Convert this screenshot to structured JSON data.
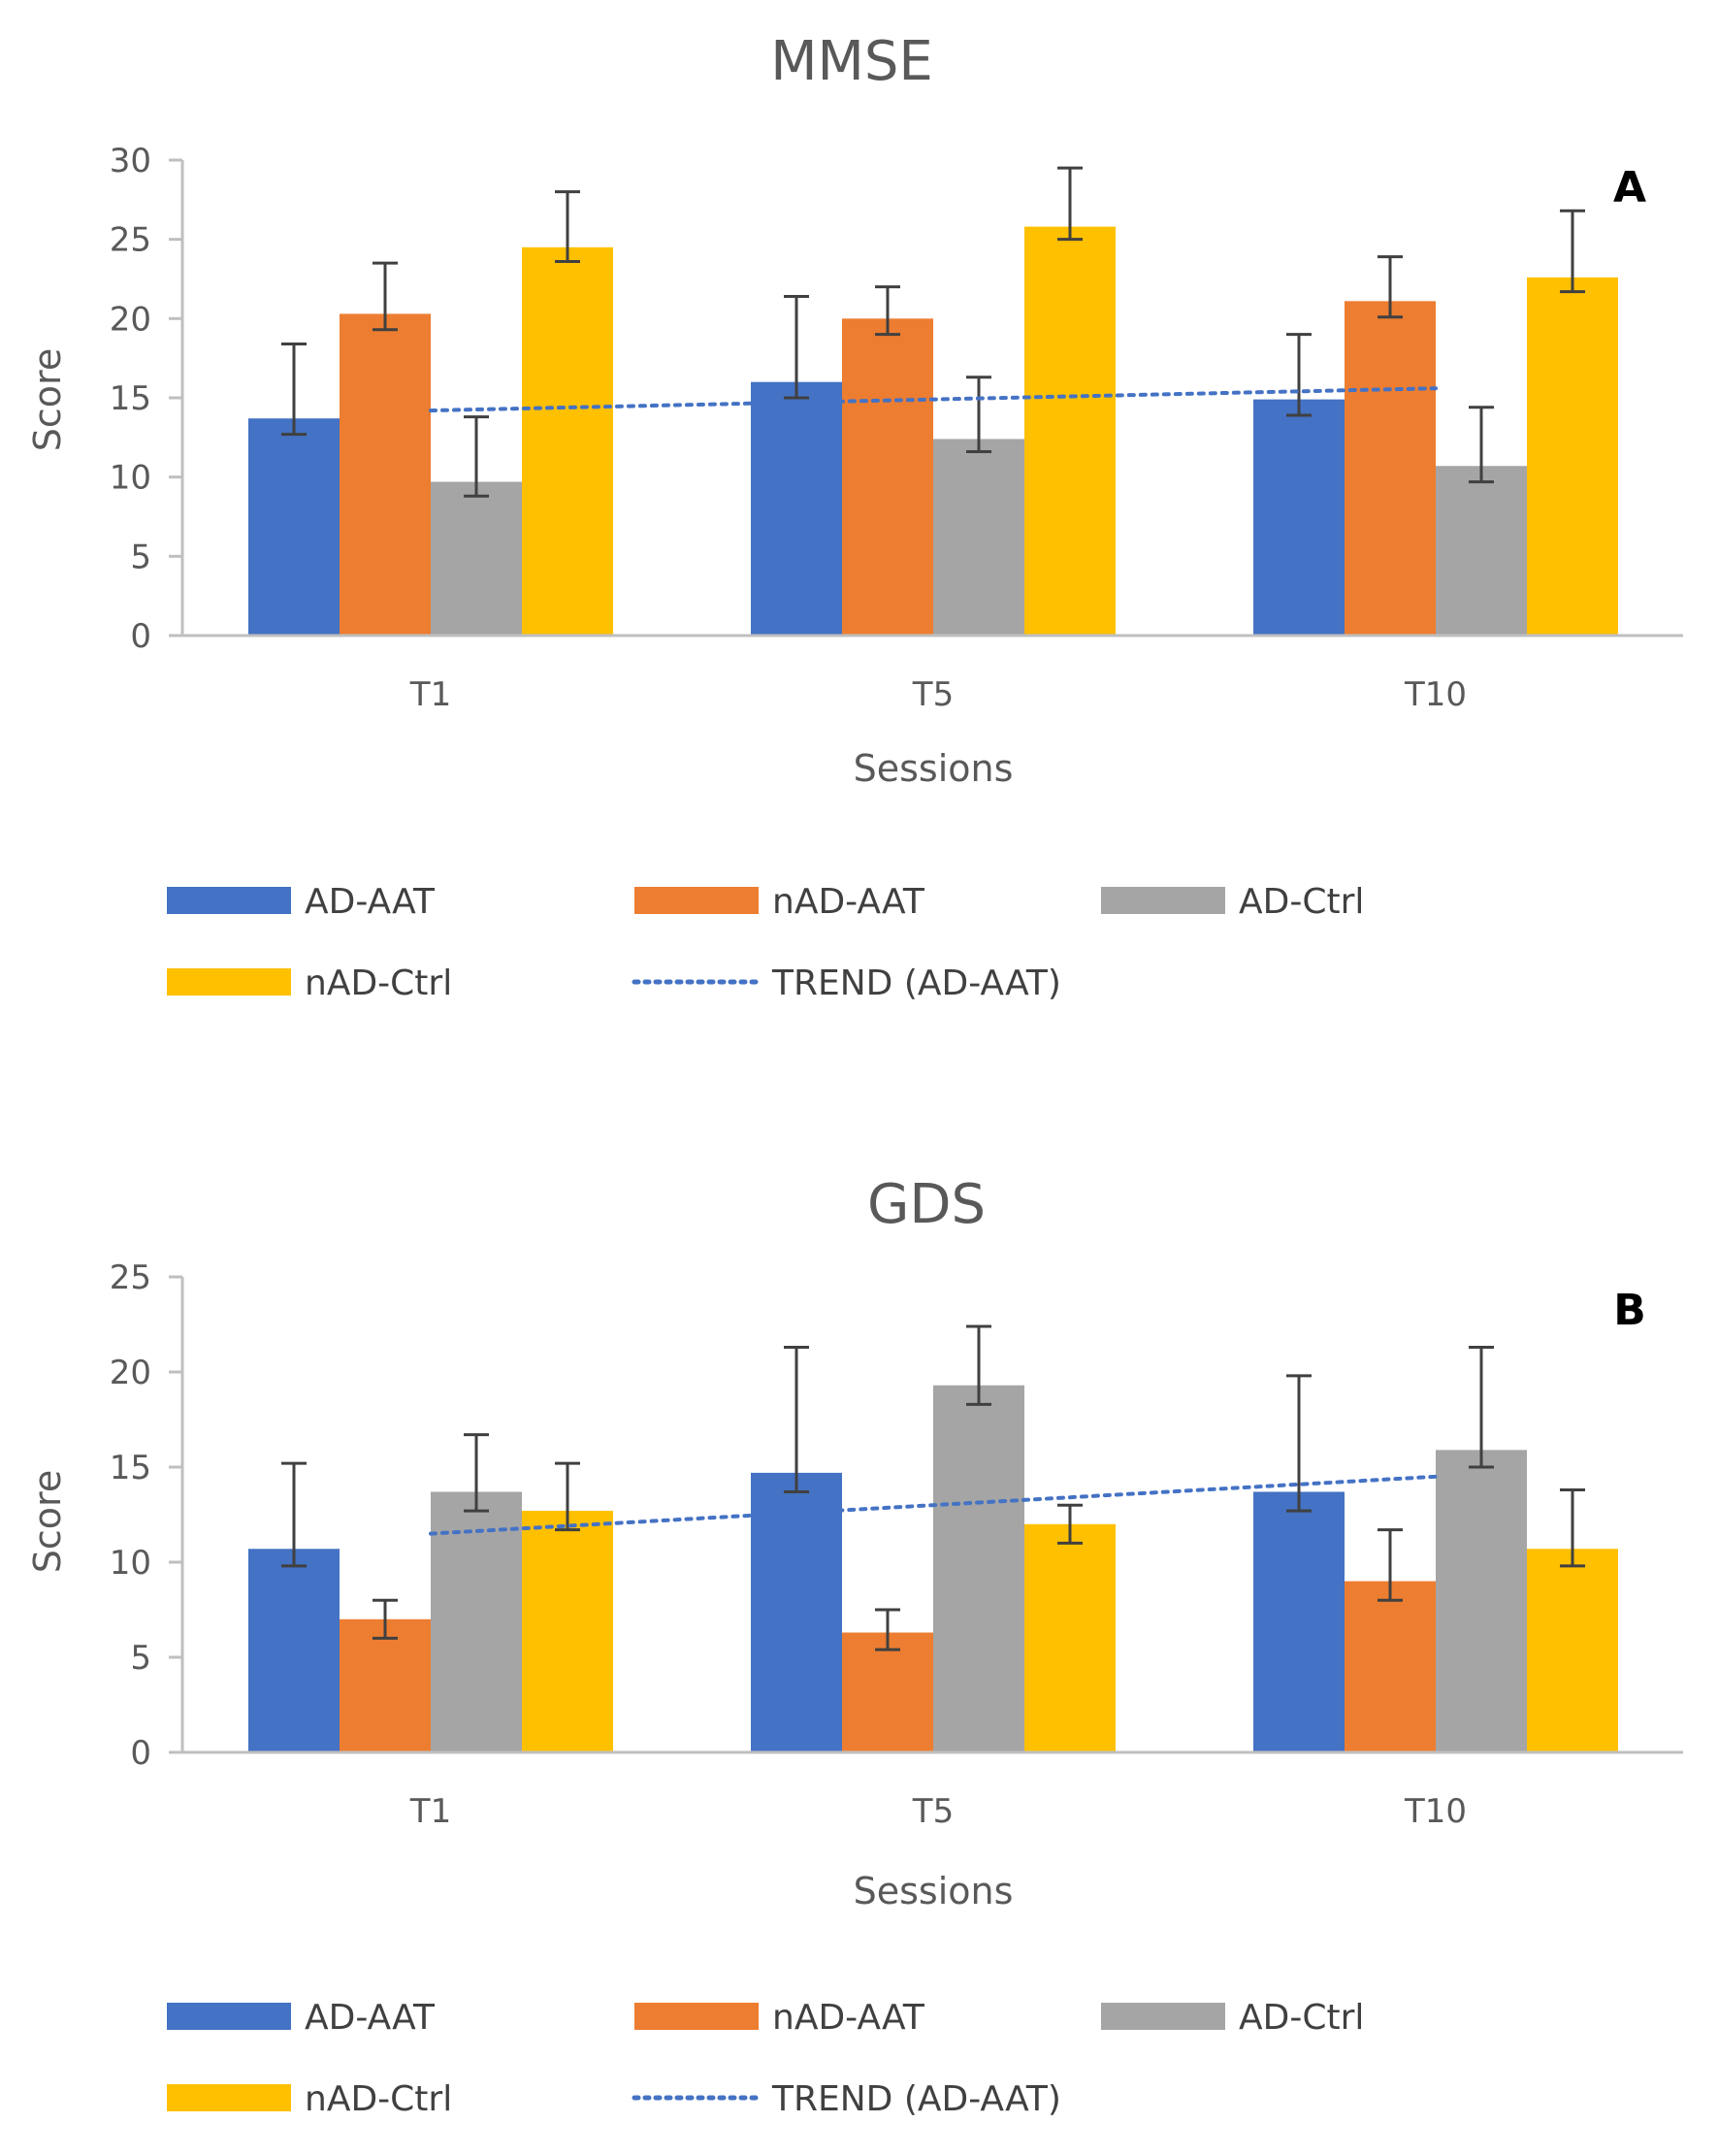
{
  "colors": {
    "AD-AAT": "#4472C4",
    "nAD-AAT": "#ED7D31",
    "AD-Ctrl": "#A5A5A5",
    "nAD-Ctrl": "#FFC000",
    "trend": "#4472C4",
    "error": "#404040",
    "axis": "#BFBFBF"
  },
  "chart_data": [
    {
      "type": "bar",
      "title": "MMSE",
      "panel_label": "A",
      "categories": [
        "T1",
        "T5",
        "T10"
      ],
      "xlabel": "Sessions",
      "ylabel": "Score",
      "ylim": [
        0,
        30
      ],
      "yticks": [
        0,
        5,
        10,
        15,
        20,
        25,
        30
      ],
      "series": [
        {
          "name": "AD-AAT",
          "values": [
            13.7,
            16.0,
            14.9
          ],
          "err_low": [
            12.7,
            15.0,
            13.9
          ],
          "err_high": [
            18.4,
            21.4,
            19.0
          ]
        },
        {
          "name": "nAD-AAT",
          "values": [
            20.3,
            20.0,
            21.1
          ],
          "err_low": [
            19.3,
            19.0,
            20.1
          ],
          "err_high": [
            23.5,
            22.0,
            23.9
          ]
        },
        {
          "name": "AD-Ctrl",
          "values": [
            9.7,
            12.4,
            10.7
          ],
          "err_low": [
            8.8,
            11.6,
            9.7
          ],
          "err_high": [
            13.8,
            16.3,
            14.4
          ]
        },
        {
          "name": "nAD-Ctrl",
          "values": [
            24.5,
            25.8,
            22.6
          ],
          "err_low": [
            23.6,
            25.0,
            21.7
          ],
          "err_high": [
            28.0,
            29.5,
            26.8
          ]
        }
      ],
      "trend": {
        "name": "TREND (AD-AAT)",
        "start": 14.2,
        "end": 15.6
      },
      "legend": [
        "AD-AAT",
        "nAD-AAT",
        "AD-Ctrl",
        "nAD-Ctrl",
        "TREND (AD-AAT)"
      ],
      "legend_position": "bottom"
    },
    {
      "type": "bar",
      "title": "GDS",
      "panel_label": "B",
      "categories": [
        "T1",
        "T5",
        "T10"
      ],
      "xlabel": "Sessions",
      "ylabel": "Score",
      "ylim": [
        0,
        25
      ],
      "yticks": [
        0,
        5,
        10,
        15,
        20,
        25
      ],
      "series": [
        {
          "name": "AD-AAT",
          "values": [
            10.7,
            14.7,
            13.7
          ],
          "err_low": [
            9.8,
            13.7,
            12.7
          ],
          "err_high": [
            15.2,
            21.3,
            19.8
          ]
        },
        {
          "name": "nAD-AAT",
          "values": [
            7.0,
            6.3,
            9.0
          ],
          "err_low": [
            6.0,
            5.4,
            8.0
          ],
          "err_high": [
            8.0,
            7.5,
            11.7
          ]
        },
        {
          "name": "AD-Ctrl",
          "values": [
            13.7,
            19.3,
            15.9
          ],
          "err_low": [
            12.7,
            18.3,
            15.0
          ],
          "err_high": [
            16.7,
            22.4,
            21.3
          ]
        },
        {
          "name": "nAD-Ctrl",
          "values": [
            12.7,
            12.0,
            10.7
          ],
          "err_low": [
            11.7,
            11.0,
            9.8
          ],
          "err_high": [
            15.2,
            13.0,
            13.8
          ]
        }
      ],
      "trend": {
        "name": "TREND (AD-AAT)",
        "start": 11.5,
        "end": 14.5
      },
      "legend": [
        "AD-AAT",
        "nAD-AAT",
        "AD-Ctrl",
        "nAD-Ctrl",
        "TREND (AD-AAT)"
      ],
      "legend_position": "bottom"
    }
  ]
}
